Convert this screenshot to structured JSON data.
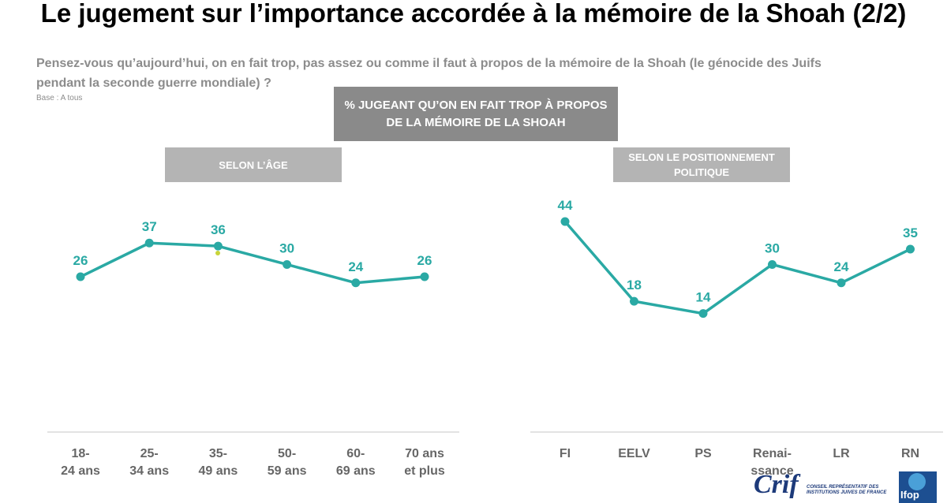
{
  "title": "Le jugement sur l’importance accordée à la mémoire de la Shoah (2/2)",
  "question": "Pensez-vous qu’aujourd’hui, on en fait trop, pas assez ou comme il faut à propos de la mémoire de la Shoah (le génocide des Juifs pendant la seconde guerre mondiale) ?",
  "base": "Base : A tous",
  "banner": "% JUGEANT QU’ON EN FAIT TROP À PROPOS DE LA MÉMOIRE DE LA SHOAH",
  "logos": {
    "crif": "Crif",
    "crif_subtitle": "CONSEIL REPRÉSENTATIF DES INSTITUTIONS JUIVES DE FRANCE",
    "ifop": "Ifop"
  },
  "colors": {
    "series": "#2aa9a4",
    "banner": "#8a8a8a",
    "subheader": "#b4b4b4",
    "axis_label": "#666666"
  },
  "chart_data": [
    {
      "type": "line",
      "subtitle": "SELON L’ÂGE",
      "categories": [
        "18-\n24 ans",
        "25-\n34 ans",
        "35-\n49 ans",
        "50-\n59 ans",
        "60-\n69 ans",
        "70 ans\net plus"
      ],
      "values": [
        26,
        37,
        36,
        30,
        24,
        26
      ],
      "ylim": [
        0,
        50
      ],
      "grid": false,
      "legend": "none"
    },
    {
      "type": "line",
      "subtitle": "SELON LE POSITIONNEMENT POLITIQUE",
      "categories": [
        "FI",
        "EELV",
        "PS",
        "Renai-\nssance",
        "LR",
        "RN"
      ],
      "values": [
        44,
        18,
        14,
        30,
        24,
        35
      ],
      "ylim": [
        0,
        50
      ],
      "grid": false,
      "legend": "none"
    }
  ]
}
